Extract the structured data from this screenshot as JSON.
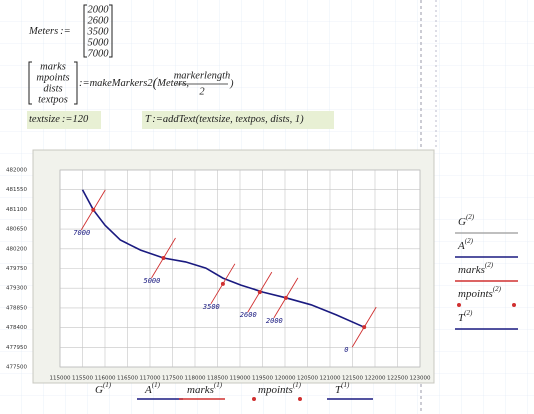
{
  "worksheet": {
    "meters": {
      "name": "Meters",
      "op": ":=",
      "values": [
        2000,
        2600,
        3500,
        5000,
        7000
      ]
    },
    "markers_def": {
      "outputs": [
        "marks",
        "mpoints",
        "dists",
        "textpos"
      ],
      "op": ":=",
      "call": "makeMarkers2",
      "open": "(",
      "arg": "Meters,",
      "numerator": "markerlength",
      "denominator": "2",
      "close": ")"
    },
    "textsize": {
      "name": "textsize",
      "op": ":=",
      "value": 120
    },
    "addtext": {
      "name": "T",
      "op": ":=",
      "expr": "addText(textsize, textpos, dists, 1)"
    }
  },
  "plot": {
    "xlim": [
      115000,
      123000
    ],
    "ylim": [
      477500,
      482000
    ],
    "xticks": [
      115000,
      115500,
      116000,
      116500,
      117000,
      117500,
      118000,
      118500,
      119000,
      119500,
      120000,
      120500,
      121000,
      121500,
      122000,
      122500,
      123000
    ],
    "yticks": [
      482000,
      481550,
      481100,
      480650,
      480200,
      479750,
      479300,
      478850,
      478400,
      477950,
      477500
    ],
    "grid": true,
    "curve": {
      "color": "#1a1a80",
      "x": [
        115500,
        115740,
        116000,
        116340,
        116790,
        117300,
        117790,
        118240,
        118620,
        119020,
        119510,
        120020,
        120580,
        121140,
        121760
      ],
      "y": [
        481550,
        481090,
        480740,
        480400,
        480170,
        479990,
        479900,
        479760,
        479530,
        479370,
        479210,
        479080,
        478920,
        478690,
        478410
      ]
    },
    "markers": {
      "color": "#d03030",
      "x": [
        115740,
        117300,
        118620,
        119440,
        120020,
        121760
      ],
      "y": [
        481090,
        479990,
        479400,
        479210,
        479080,
        478410
      ],
      "labels": [
        "7000",
        "5000",
        "3500",
        "2600",
        "2000",
        "0"
      ]
    },
    "legend_right": [
      {
        "name": "G",
        "sup": "(2)",
        "color": "#aaaaaa",
        "style": "line"
      },
      {
        "name": "A",
        "sup": "(2)",
        "color": "#1a1a80",
        "style": "line"
      },
      {
        "name": "marks",
        "sup": "(2)",
        "color": "#d03030",
        "style": "line"
      },
      {
        "name": "mpoints",
        "sup": "(2)",
        "color": "#d03030",
        "style": "dot"
      },
      {
        "name": "T",
        "sup": "(2)",
        "color": "#1a1a80",
        "style": "line"
      }
    ],
    "legend_bottom": [
      {
        "name": "G",
        "sup": "(1)",
        "color": "#aaaaaa",
        "style": "none"
      },
      {
        "name": "A",
        "sup": "(1)",
        "color": "#1a1a80",
        "style": "line"
      },
      {
        "name": "marks",
        "sup": "(1)",
        "color": "#d03030",
        "style": "line"
      },
      {
        "name": "mpoints",
        "sup": "(1)",
        "color": "#d03030",
        "style": "dot"
      },
      {
        "name": "T",
        "sup": "(1)",
        "color": "#1a1a80",
        "style": "line"
      }
    ]
  }
}
